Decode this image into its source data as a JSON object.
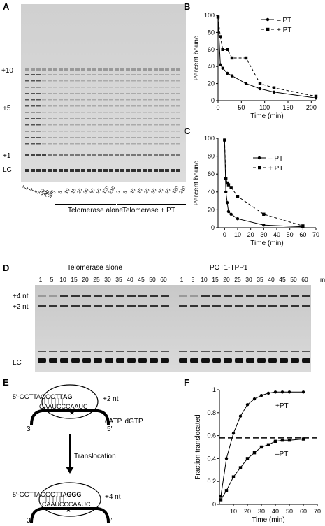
{
  "panels": {
    "A": {
      "label": "A",
      "markers": [
        "+10",
        "+5",
        "+1",
        "LC"
      ],
      "left_lanes": [
        "TTT",
        "T",
        "30",
        "30",
        "5",
        "Δ",
        "5",
        "10",
        "5",
        "Ψ"
      ],
      "left_lanes_display": [
        "T",
        "T",
        "T",
        "5",
        "30",
        "Ab",
        "Sm"
      ],
      "time_labels_1": [
        "0",
        "5",
        "10",
        "15",
        "20",
        "30",
        "60",
        "90",
        "120",
        "210"
      ],
      "time_labels_2": [
        "0",
        "5",
        "10",
        "15",
        "20",
        "30",
        "60",
        "90",
        "120",
        "210"
      ],
      "group_1": "Telomerase alone",
      "group_2": "Telomerase + PT"
    },
    "D": {
      "label": "D",
      "group_1": "Telomerase alone",
      "group_2": "POT1-TPP1",
      "times_1": [
        "1",
        "5",
        "10",
        "15",
        "20",
        "25",
        "30",
        "35",
        "40",
        "45",
        "50",
        "60"
      ],
      "times_2": [
        "1",
        "5",
        "10",
        "15",
        "20",
        "25",
        "30",
        "35",
        "40",
        "45",
        "50",
        "60"
      ],
      "unit": "min",
      "markers": [
        "+4 nt",
        "+2 nt",
        "LC"
      ]
    },
    "E": {
      "label": "E",
      "top_seq_5": "5′-GGTTAGGGTT",
      "top_seq_bold": "AG",
      "top_template": "CAAUCCCAAUC",
      "top_nt": "+2 nt",
      "dntps": "dATP, dGTP",
      "arrow_label": "Translocation",
      "bottom_seq_5": "5′-GGTTAGGGTTA",
      "bottom_seq_bold": "GGG",
      "bottom_template": "CAAUCCCAAUC",
      "bottom_nt": "+4 nt",
      "end3": "3′",
      "end5": "5′"
    }
  },
  "chart_data": [
    {
      "panel": "B",
      "type": "scatter",
      "ylabel": "Percent bound",
      "xlabel": "Time (min)",
      "xlim": [
        0,
        210
      ],
      "ylim": [
        0,
        100
      ],
      "xticks": [
        0,
        50,
        100,
        150,
        200
      ],
      "yticks": [
        0,
        20,
        40,
        60,
        80,
        100
      ],
      "legend": [
        "– PT",
        "+ PT"
      ],
      "series": [
        {
          "name": "– PT",
          "x": [
            0,
            5,
            10,
            20,
            30,
            60,
            90,
            120,
            210
          ],
          "y": [
            98,
            42,
            38,
            32,
            29,
            20,
            14,
            10,
            3
          ]
        },
        {
          "name": "+ PT",
          "x": [
            0,
            5,
            10,
            20,
            30,
            60,
            90,
            120,
            210
          ],
          "y": [
            98,
            75,
            60,
            60,
            50,
            50,
            20,
            15,
            5
          ]
        }
      ]
    },
    {
      "panel": "C",
      "type": "scatter",
      "ylabel": "Percent bound",
      "xlabel": "Time (min)",
      "xlim": [
        -5,
        70
      ],
      "ylim": [
        0,
        100
      ],
      "xticks": [
        0,
        10,
        20,
        30,
        40,
        50,
        60,
        70
      ],
      "yticks": [
        0,
        20,
        40,
        60,
        80,
        100
      ],
      "legend": [
        "– PT",
        "+ PT"
      ],
      "series": [
        {
          "name": "– PT",
          "x": [
            0,
            1,
            2,
            3,
            5,
            10,
            30,
            60
          ],
          "y": [
            98,
            40,
            28,
            18,
            15,
            10,
            3,
            1
          ]
        },
        {
          "name": "+ PT",
          "x": [
            0,
            1,
            2,
            3,
            5,
            10,
            30,
            60
          ],
          "y": [
            98,
            55,
            50,
            48,
            45,
            35,
            15,
            2
          ]
        }
      ]
    },
    {
      "panel": "F",
      "type": "scatter",
      "ylabel": "Fraction translocated",
      "xlabel": "Time (min)",
      "xlim": [
        0,
        70
      ],
      "ylim": [
        0,
        1
      ],
      "xticks": [
        10,
        20,
        30,
        40,
        50,
        60,
        70
      ],
      "yticks": [
        0,
        0.2,
        0.4,
        0.6,
        0.8,
        1
      ],
      "dashed_line": 0.58,
      "series": [
        {
          "name": "+PT",
          "x": [
            1,
            5,
            10,
            15,
            20,
            25,
            30,
            35,
            40,
            45,
            50,
            60
          ],
          "y": [
            0.07,
            0.4,
            0.62,
            0.77,
            0.87,
            0.92,
            0.95,
            0.97,
            0.98,
            0.98,
            0.98,
            0.98
          ]
        },
        {
          "name": "–PT",
          "x": [
            1,
            5,
            10,
            15,
            20,
            25,
            30,
            35,
            40,
            45,
            50,
            60
          ],
          "y": [
            0.04,
            0.12,
            0.24,
            0.32,
            0.4,
            0.45,
            0.5,
            0.52,
            0.55,
            0.56,
            0.56,
            0.57
          ]
        }
      ]
    }
  ]
}
